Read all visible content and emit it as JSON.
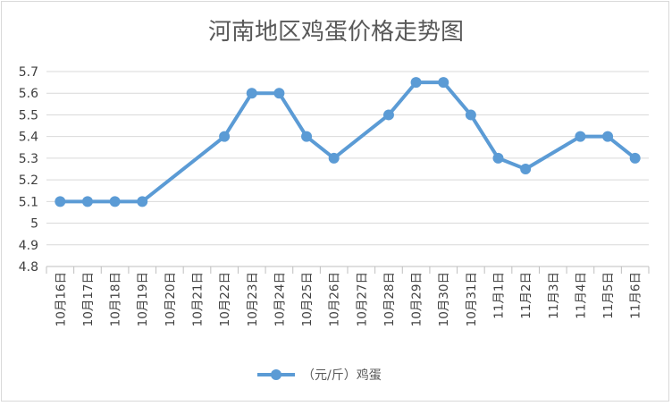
{
  "chart_data": {
    "type": "line",
    "title": "河南地区鸡蛋价格走势图",
    "xlabel": "",
    "ylabel": "",
    "categories": [
      "10月16日",
      "10月17日",
      "10月18日",
      "10月19日",
      "10月20日",
      "10月21日",
      "10月22日",
      "10月23日",
      "10月24日",
      "10月25日",
      "10月26日",
      "10月27日",
      "10月28日",
      "10月29日",
      "10月30日",
      "10月31日",
      "11月1日",
      "11月2日",
      "11月3日",
      "11月4日",
      "11月5日",
      "11月6日"
    ],
    "series": [
      {
        "name": "（元/斤）鸡蛋",
        "values": [
          5.1,
          5.1,
          5.1,
          5.1,
          null,
          null,
          5.4,
          5.6,
          5.6,
          5.4,
          5.3,
          null,
          5.5,
          5.65,
          5.65,
          5.5,
          5.3,
          5.25,
          null,
          5.4,
          5.4,
          5.3
        ]
      }
    ],
    "ylim": [
      4.8,
      5.7
    ],
    "yticks": [
      "4.8",
      "4.9",
      "5",
      "5.1",
      "5.2",
      "5.3",
      "5.4",
      "5.5",
      "5.6",
      "5.7"
    ],
    "grid": true,
    "legend": "bottom",
    "color": "#5b9bd5"
  }
}
